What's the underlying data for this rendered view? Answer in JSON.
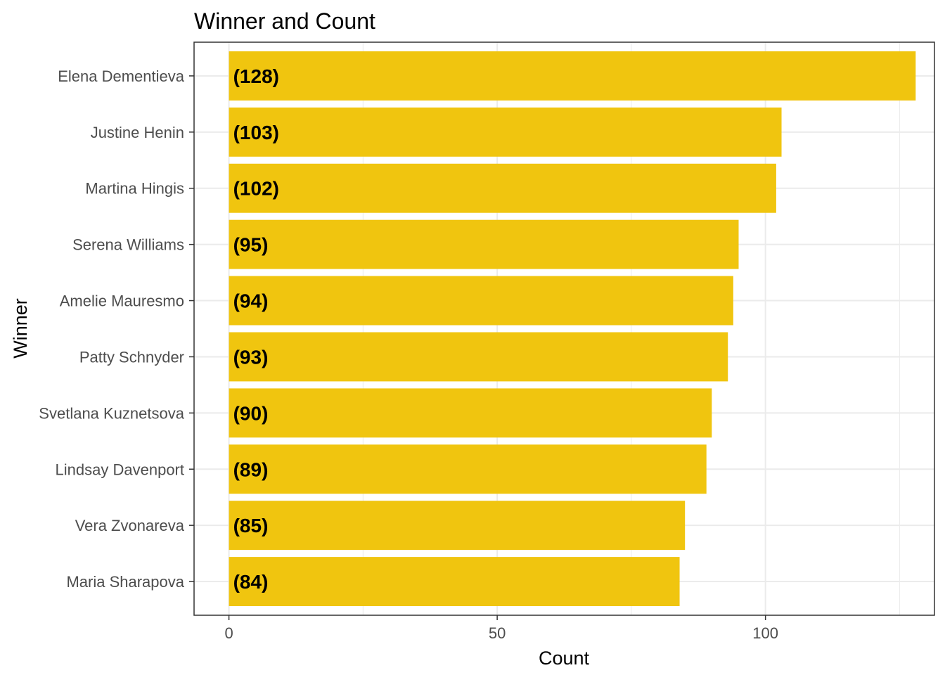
{
  "chart_data": {
    "type": "bar",
    "orientation": "horizontal",
    "title": "Winner and Count",
    "xlabel": "Count",
    "ylabel": "Winner",
    "xlim": [
      -6.5,
      131.5
    ],
    "x_ticks": [
      0,
      50,
      100
    ],
    "x_tick_labels": [
      "0",
      "50",
      "100"
    ],
    "grid": true,
    "bar_color": "#f0c50f",
    "categories": [
      "Elena Dementieva",
      "Justine Henin",
      "Martina Hingis",
      "Serena Williams",
      "Amelie Mauresmo",
      "Patty Schnyder",
      "Svetlana Kuznetsova",
      "Lindsay Davenport",
      "Vera Zvonareva",
      "Maria Sharapova"
    ],
    "values": [
      128,
      103,
      102,
      95,
      94,
      93,
      90,
      89,
      85,
      84
    ],
    "data_labels": [
      "(128)",
      "(103)",
      "(102)",
      "(95)",
      "(94)",
      "(93)",
      "(90)",
      "(89)",
      "(85)",
      "(84)"
    ]
  }
}
